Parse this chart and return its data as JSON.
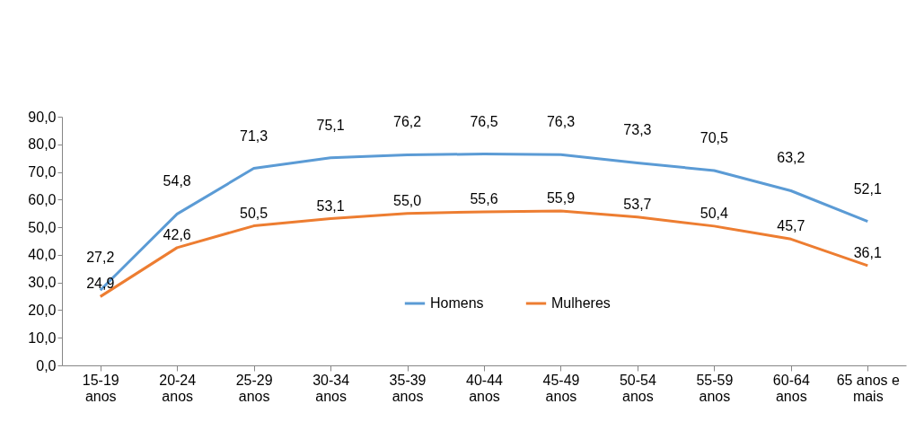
{
  "chart_data": {
    "type": "line",
    "categories": [
      "15-19 anos",
      "20-24 anos",
      "25-29 anos",
      "30-34 anos",
      "35-39 anos",
      "40-44 anos",
      "45-49 anos",
      "50-54 anos",
      "55-59 anos",
      "60-64 anos",
      "65 anos e mais"
    ],
    "series": [
      {
        "name": "Homens",
        "color": "#5b9bd5",
        "values": [
          27.2,
          54.8,
          71.3,
          75.1,
          76.2,
          76.5,
          76.3,
          73.3,
          70.5,
          63.2,
          52.1
        ],
        "value_labels": [
          "27,2",
          "54,8",
          "71,3",
          "75,1",
          "76,2",
          "76,5",
          "76,3",
          "73,3",
          "70,5",
          "63,2",
          "52,1"
        ]
      },
      {
        "name": "Mulheres",
        "color": "#ed7d31",
        "values": [
          24.9,
          42.6,
          50.5,
          53.1,
          55.0,
          55.6,
          55.9,
          53.7,
          50.4,
          45.7,
          36.1
        ],
        "value_labels": [
          "24,9",
          "42,6",
          "50,5",
          "53,1",
          "55,0",
          "55,6",
          "55,9",
          "53,7",
          "50,4",
          "45,7",
          "36,1"
        ]
      }
    ],
    "ylim": [
      0,
      90
    ],
    "yticks": [
      {
        "value": 0,
        "label": "0,0"
      },
      {
        "value": 10,
        "label": "10,0"
      },
      {
        "value": 20,
        "label": "20,0"
      },
      {
        "value": 30,
        "label": "30,0"
      },
      {
        "value": 40,
        "label": "40,0"
      },
      {
        "value": 50,
        "label": "50,0"
      },
      {
        "value": 60,
        "label": "60,0"
      },
      {
        "value": 70,
        "label": "70,0"
      },
      {
        "value": 80,
        "label": "80,0"
      },
      {
        "value": 90,
        "label": "90,0"
      }
    ],
    "grid": false,
    "legend": "bottom",
    "marker": "none",
    "line_style": "solid"
  }
}
